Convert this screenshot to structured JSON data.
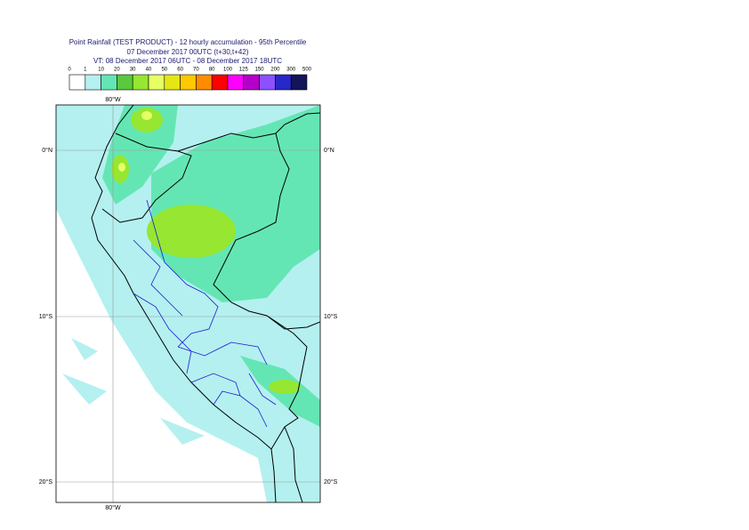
{
  "header": {
    "lines": [
      "Point Rainfall (TEST PRODUCT) - 12 hourly accumulation - 95th Percentile",
      "07 December 2017 00UTC (t+30,t+42)",
      "VT: 08 December 2017 06UTC - 08 December 2017 18UTC"
    ]
  },
  "colorbar": {
    "labels": [
      0,
      1,
      10,
      20,
      30,
      40,
      50,
      60,
      70,
      80,
      100,
      125,
      150,
      200,
      300,
      500
    ],
    "colors": [
      "#ffffff",
      "#b4f0f0",
      "#64e6b4",
      "#5ac83c",
      "#96e632",
      "#e6ff64",
      "#e6e614",
      "#ffc800",
      "#ff8c00",
      "#ff0000",
      "#ff00ff",
      "#b400c8",
      "#8c50ff",
      "#2828c8",
      "#14145a"
    ]
  },
  "map": {
    "lon_labels": [
      "80°W",
      "80°W"
    ],
    "lat_labels": [
      "0°N",
      "10°S",
      "20°S"
    ]
  }
}
